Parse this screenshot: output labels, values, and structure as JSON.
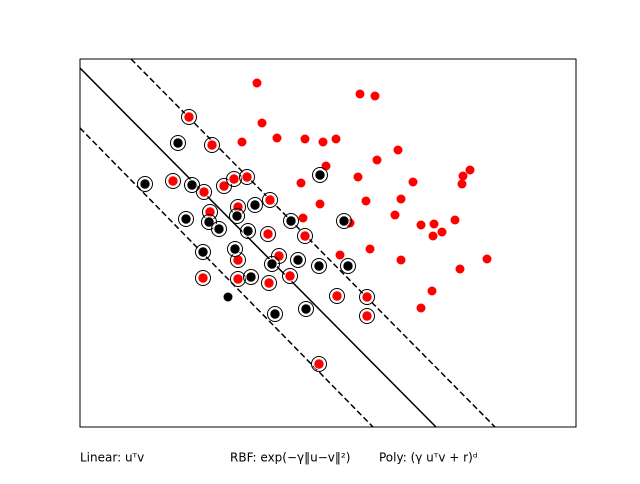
{
  "chart_data": {
    "type": "scatter",
    "xlim": [
      0,
      496
    ],
    "ylim": [
      0,
      368
    ],
    "series": [
      {
        "color": "red",
        "support_vectors": false,
        "x": [
          177,
          280,
          295,
          182,
          162,
          197,
          225,
          243,
          256,
          297,
          318,
          246,
          278,
          221,
          333,
          383,
          390,
          382,
          240,
          286,
          321,
          315,
          223,
          270,
          341,
          354,
          375,
          353,
          362,
          290,
          260,
          321,
          380,
          407,
          352,
          341
        ],
        "y": [
          344,
          333,
          331,
          304,
          285,
          289,
          288,
          285,
          288,
          267,
          277,
          261,
          250,
          244,
          245,
          251,
          257,
          243,
          223,
          226,
          228,
          212,
          209,
          204,
          202,
          203,
          207,
          191,
          195,
          178,
          172,
          167,
          158,
          168,
          136,
          119
        ]
      },
      {
        "color": "black",
        "support_vectors": false,
        "x": [
          148
        ],
        "y": [
          130
        ]
      },
      {
        "color": "red",
        "support_vectors": true,
        "x": [
          109,
          132,
          93,
          124,
          144,
          154,
          167,
          130,
          158,
          190,
          188,
          225,
          199,
          158,
          210,
          123,
          158,
          189,
          257,
          287,
          287,
          239
        ],
        "y": [
          310,
          282,
          246,
          235,
          241,
          248,
          250,
          215,
          220,
          227,
          193,
          191,
          171,
          167,
          151,
          149,
          148,
          144,
          131,
          130,
          111,
          63
        ]
      },
      {
        "color": "black",
        "support_vectors": true,
        "x": [
          98,
          65,
          112,
          240,
          175,
          106,
          157,
          129,
          139,
          168,
          211,
          264,
          123,
          155,
          192,
          218,
          239,
          268,
          171,
          226,
          195
        ],
        "y": [
          284,
          243,
          242,
          252,
          222,
          208,
          211,
          205,
          198,
          196,
          206,
          206,
          175,
          178,
          163,
          167,
          161,
          161,
          150,
          118,
          113
        ]
      }
    ],
    "lines": [
      {
        "color": "black",
        "dashed": false,
        "x": [
          0,
          356
        ],
        "y": [
          359,
          0
        ]
      },
      {
        "color": "black",
        "dashed": true,
        "x": [
          51,
          415
        ],
        "y": [
          368,
          0
        ]
      },
      {
        "color": "black",
        "dashed": true,
        "x": [
          0,
          293
        ],
        "y": [
          299,
          0
        ]
      }
    ],
    "annotations": [
      "Linear: uᵀv",
      "RBF: exp(−γ‖u−v‖²)",
      "Poly: (γ uᵀv + r)ᵈ"
    ]
  }
}
